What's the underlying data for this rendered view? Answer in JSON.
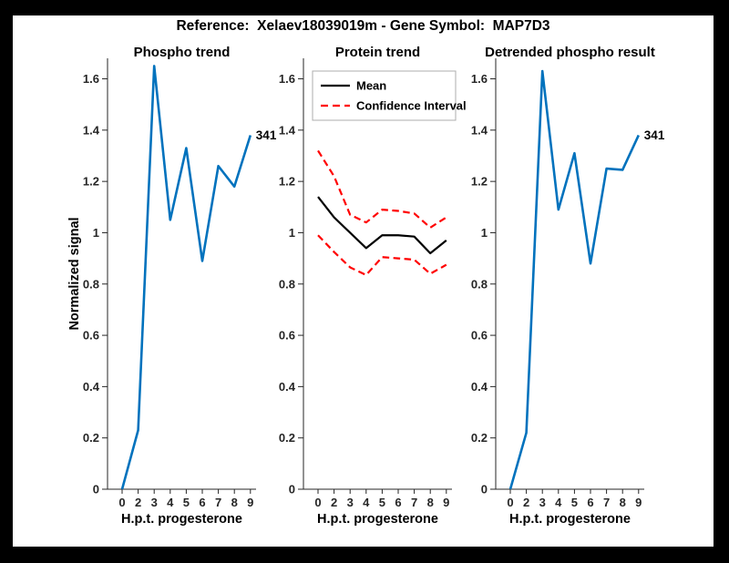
{
  "figure": {
    "title": "Reference:  Xelaev18039019m - Gene Symbol:  MAP7D3",
    "background": "#ffffff",
    "frame_color": "#000000"
  },
  "colors": {
    "matlab_blue": "#0072BD",
    "ci_red": "#FF0000",
    "mean_black": "#000000",
    "axis_gray": "#262626",
    "legend_edge": "#adadad"
  },
  "chart_data": [
    {
      "type": "line",
      "title": "Phospho trend",
      "xlabel": "H.p.t. progesterone",
      "ylabel": "Normalized signal",
      "categories": [
        "0",
        "2",
        "3",
        "4",
        "5",
        "6",
        "7",
        "8",
        "9"
      ],
      "ytick_labels": [
        "0",
        "0.2",
        "0.4",
        "0.6",
        "0.8",
        "1",
        "1.2",
        "1.4",
        "1.6"
      ],
      "ytick_values": [
        0,
        0.2,
        0.4,
        0.6,
        0.8,
        1,
        1.2,
        1.4,
        1.6
      ],
      "ylim": [
        0,
        1.68
      ],
      "grid": false,
      "series": [
        {
          "name": "phospho-signal",
          "color": "#0072BD",
          "dash": "solid",
          "width": 2.6,
          "values": [
            0,
            0.23,
            1.65,
            1.05,
            1.33,
            0.89,
            1.26,
            1.18,
            1.38
          ]
        }
      ],
      "annotation": {
        "text": "341",
        "x_index": 8,
        "y": 1.38
      }
    },
    {
      "type": "line",
      "title": "Protein trend",
      "xlabel": "H.p.t. progesterone",
      "ylabel": "",
      "categories": [
        "0",
        "2",
        "3",
        "4",
        "5",
        "6",
        "7",
        "8",
        "9"
      ],
      "ytick_labels": [
        "0",
        "0.2",
        "0.4",
        "0.6",
        "0.8",
        "1",
        "1.2",
        "1.4",
        "1.6"
      ],
      "ytick_values": [
        0,
        0.2,
        0.4,
        0.6,
        0.8,
        1,
        1.2,
        1.4,
        1.6
      ],
      "ylim": [
        0,
        1.68
      ],
      "grid": false,
      "legend": {
        "position": "northwest",
        "entries": [
          {
            "label": "Mean",
            "color": "#000000",
            "dash": "solid"
          },
          {
            "label": "Confidence Interval",
            "color": "#FF0000",
            "dash": "dashed"
          }
        ]
      },
      "series": [
        {
          "name": "protein-mean",
          "color": "#000000",
          "dash": "solid",
          "width": 2.2,
          "values": [
            1.14,
            1.06,
            1.0,
            0.94,
            0.99,
            0.99,
            0.985,
            0.92,
            0.97
          ]
        },
        {
          "name": "ci-upper",
          "color": "#FF0000",
          "dash": "dashed",
          "width": 2.2,
          "values": [
            1.32,
            1.22,
            1.07,
            1.04,
            1.09,
            1.085,
            1.075,
            1.02,
            1.06
          ]
        },
        {
          "name": "ci-lower",
          "color": "#FF0000",
          "dash": "dashed",
          "width": 2.2,
          "values": [
            0.99,
            0.925,
            0.865,
            0.835,
            0.905,
            0.9,
            0.895,
            0.84,
            0.875
          ]
        }
      ]
    },
    {
      "type": "line",
      "title": "Detrended phospho result",
      "xlabel": "H.p.t. progesterone",
      "ylabel": "",
      "categories": [
        "0",
        "2",
        "3",
        "4",
        "5",
        "6",
        "7",
        "8",
        "9"
      ],
      "ytick_labels": [
        "0",
        "0.2",
        "0.4",
        "0.6",
        "0.8",
        "1",
        "1.2",
        "1.4",
        "1.6"
      ],
      "ytick_values": [
        0,
        0.2,
        0.4,
        0.6,
        0.8,
        1,
        1.2,
        1.4,
        1.6
      ],
      "ylim": [
        0,
        1.68
      ],
      "grid": false,
      "series": [
        {
          "name": "detrended-phospho",
          "color": "#0072BD",
          "dash": "solid",
          "width": 2.6,
          "values": [
            0,
            0.22,
            1.63,
            1.09,
            1.31,
            0.88,
            1.25,
            1.245,
            1.38
          ]
        }
      ],
      "annotation": {
        "text": "341",
        "x_index": 8,
        "y": 1.38
      }
    }
  ]
}
